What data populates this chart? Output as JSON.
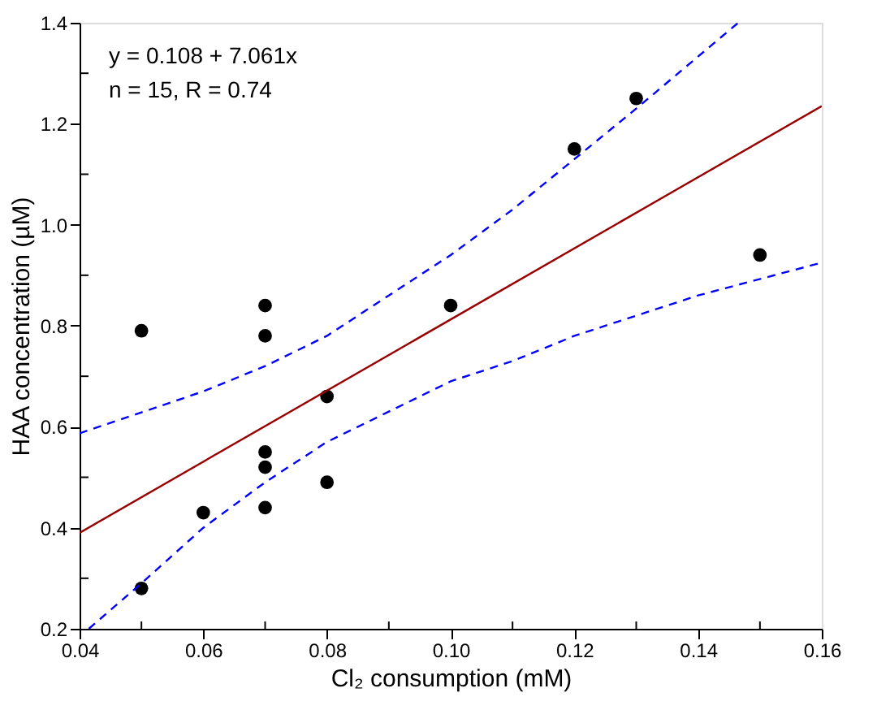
{
  "chart_data": {
    "type": "scatter",
    "xlabel": "Cl₂ consumption (mM)",
    "ylabel": "HAA concentration (µM)",
    "annotations": [
      "y = 0.108 + 7.061x",
      "n = 15, R = 0.74"
    ],
    "xlim": [
      0.04,
      0.16
    ],
    "ylim": [
      0.2,
      1.4
    ],
    "xticks": [
      0.04,
      {
        "value": 0.05,
        "label": null
      },
      0.06,
      {
        "value": 0.07,
        "label": null
      },
      0.08,
      {
        "value": 0.09,
        "label": null
      },
      {
        "value": 0.1,
        "label": "0.10"
      },
      {
        "value": 0.11,
        "label": null
      },
      0.12,
      {
        "value": 0.13,
        "label": null
      },
      0.14,
      {
        "value": 0.15,
        "label": null
      },
      0.16
    ],
    "yticks": [
      0.2,
      {
        "value": 0.3,
        "label": null
      },
      0.4,
      {
        "value": 0.5,
        "label": null
      },
      0.6,
      {
        "value": 0.7,
        "label": null
      },
      0.8,
      {
        "value": 0.9,
        "label": null
      },
      {
        "value": 1.0,
        "label": "1.0"
      },
      {
        "value": 1.1,
        "label": null
      },
      1.2,
      {
        "value": 1.3,
        "label": null
      },
      1.4
    ],
    "grid": false,
    "series": [
      {
        "type": "scatter",
        "color": "#000000",
        "marker": "circle",
        "x": [
          0.05,
          0.05,
          0.06,
          0.07,
          0.07,
          0.07,
          0.07,
          0.07,
          0.08,
          0.08,
          0.1,
          0.12,
          0.13,
          0.15
        ],
        "values": [
          0.79,
          0.28,
          0.43,
          0.84,
          0.78,
          0.55,
          0.52,
          0.44,
          0.66,
          0.49,
          0.84,
          1.15,
          1.25,
          0.94
        ]
      },
      {
        "type": "line",
        "color": "#990000",
        "line_style": "solid",
        "marker": "none",
        "x": [
          0.04,
          0.16
        ],
        "values": [
          0.39,
          1.235
        ]
      },
      {
        "type": "line",
        "color": "#0000ff",
        "line_style": "dashed",
        "marker": "none",
        "x": [
          0.04,
          0.06,
          0.07,
          0.08,
          0.09,
          0.1,
          0.11,
          0.12,
          0.13,
          0.1465
        ],
        "values": [
          0.587,
          0.67,
          0.72,
          0.78,
          0.86,
          0.94,
          1.03,
          1.13,
          1.23,
          1.4
        ]
      },
      {
        "type": "line",
        "color": "#0000ff",
        "line_style": "dashed",
        "marker": "none",
        "x": [
          0.0415,
          0.05,
          0.06,
          0.07,
          0.08,
          0.09,
          0.1,
          0.11,
          0.12,
          0.13,
          0.14,
          0.16
        ],
        "values": [
          0.2,
          0.29,
          0.4,
          0.49,
          0.57,
          0.63,
          0.69,
          0.73,
          0.78,
          0.82,
          0.86,
          0.925
        ]
      }
    ]
  }
}
